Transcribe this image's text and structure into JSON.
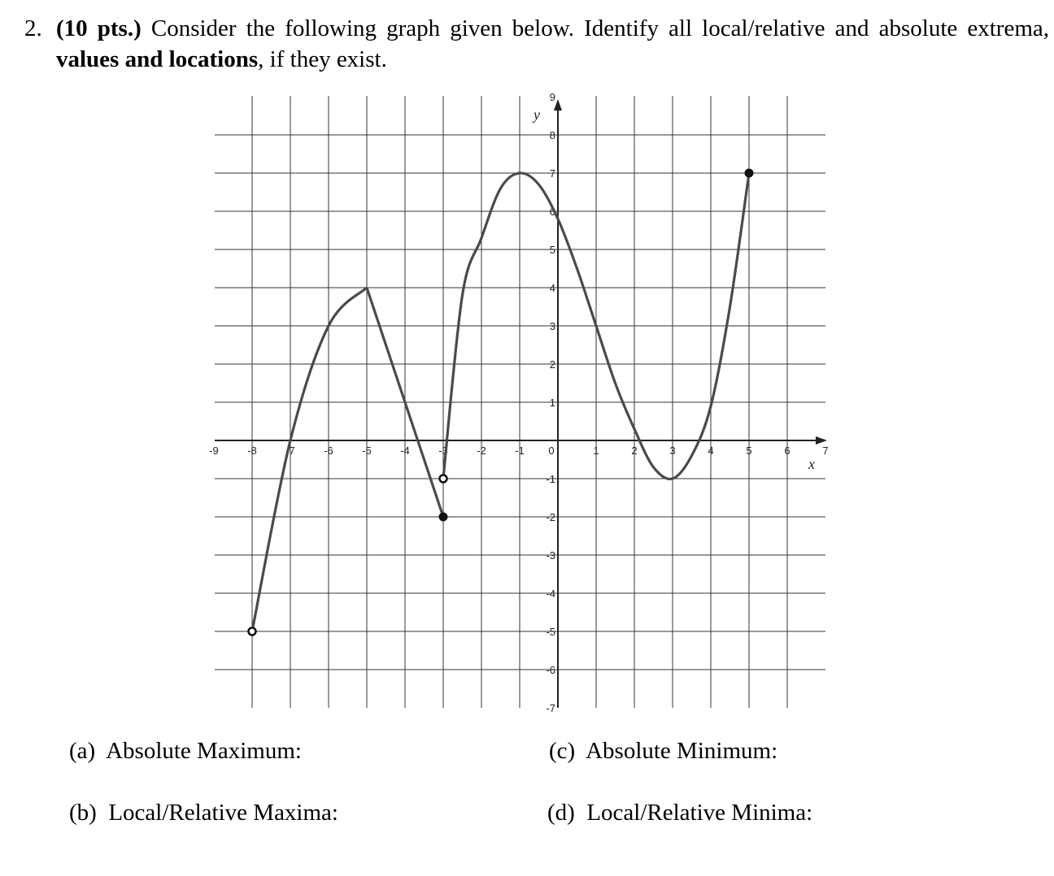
{
  "question": {
    "number": "2.",
    "points": "(10 pts.)",
    "text_1": " Consider the following graph given below. Identify all local/relative and absolute extrema, ",
    "bold": "values and locations",
    "text_2": ", if they exist."
  },
  "parts": [
    {
      "label": "(a)",
      "text": "Absolute Maximum:"
    },
    {
      "label": "(b)",
      "text": "Local/Relative Maxima:"
    },
    {
      "label": "(c)",
      "text": "Absolute Minimum:"
    },
    {
      "label": "(d)",
      "text": "Local/Relative Minima:"
    }
  ],
  "chart_data": {
    "type": "line",
    "xlabel": "x",
    "ylabel": "y",
    "xlim": [
      -9,
      7
    ],
    "ylim": [
      -7,
      9
    ],
    "x_ticks": [
      -9,
      -8,
      -7,
      -6,
      -5,
      -4,
      -3,
      -2,
      -1,
      0,
      1,
      2,
      3,
      4,
      5,
      6,
      7
    ],
    "y_ticks": [
      -7,
      -6,
      -5,
      -4,
      -3,
      -2,
      -1,
      1,
      2,
      3,
      4,
      5,
      6,
      7,
      8,
      9
    ],
    "grid": true,
    "curve_color": "#4a4a4a",
    "pieces": [
      {
        "kind": "smooth",
        "points": [
          [
            -8,
            -5
          ],
          [
            -7,
            0
          ],
          [
            -6,
            3
          ],
          [
            -5,
            4
          ]
        ]
      },
      {
        "kind": "linear",
        "points": [
          [
            -5,
            4
          ],
          [
            -3,
            -2
          ]
        ]
      },
      {
        "kind": "smooth",
        "points": [
          [
            -3,
            -1
          ],
          [
            -2.5,
            3.8
          ],
          [
            -2,
            5.3
          ],
          [
            -1.5,
            6.6
          ],
          [
            -1,
            7
          ],
          [
            -0.5,
            6.7
          ],
          [
            0,
            5.8
          ],
          [
            0.5,
            4.5
          ],
          [
            1,
            3
          ],
          [
            1.5,
            1.5
          ],
          [
            2,
            0.3
          ],
          [
            2.5,
            -0.7
          ],
          [
            3,
            -1
          ],
          [
            3.5,
            -0.4
          ],
          [
            4,
            0.9
          ],
          [
            4.5,
            3.5
          ],
          [
            5,
            7
          ]
        ]
      }
    ],
    "endpoints": [
      {
        "x": -8,
        "y": -5,
        "filled": false
      },
      {
        "x": -3,
        "y": -1,
        "filled": false
      },
      {
        "x": -3,
        "y": -2,
        "filled": true
      },
      {
        "x": 5,
        "y": 7,
        "filled": true
      }
    ]
  }
}
